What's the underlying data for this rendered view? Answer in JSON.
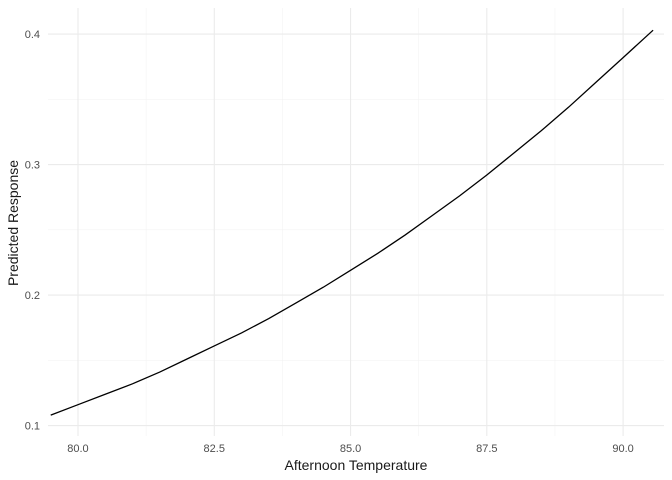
{
  "chart_data": {
    "type": "line",
    "title": "",
    "xlabel": "Afternoon Temperature",
    "ylabel": "Predicted Response",
    "xlim": [
      79.45,
      90.75
    ],
    "ylim": [
      0.092,
      0.42
    ],
    "x_ticks": [
      80.0,
      82.5,
      85.0,
      87.5,
      90.0
    ],
    "x_tick_labels": [
      "80.0",
      "82.5",
      "85.0",
      "87.5",
      "90.0"
    ],
    "y_ticks": [
      0.1,
      0.2,
      0.3,
      0.4
    ],
    "y_tick_labels": [
      "0.1",
      "0.2",
      "0.3",
      "0.4"
    ],
    "x_minor_ticks": [
      81.25,
      83.75,
      86.25,
      88.75
    ],
    "y_minor_ticks": [
      0.15,
      0.25,
      0.35
    ],
    "grid": true,
    "colors": {
      "line": "#000000",
      "grid": "#ebebeb",
      "background": "#ffffff"
    },
    "series": [
      {
        "x": [
          79.5,
          80.0,
          80.5,
          81.0,
          81.5,
          82.0,
          82.5,
          83.0,
          83.5,
          84.0,
          84.5,
          85.0,
          85.5,
          86.0,
          86.5,
          87.0,
          87.5,
          88.0,
          88.5,
          89.0,
          89.5,
          90.0,
          90.55
        ],
        "values": [
          0.108,
          0.116,
          0.124,
          0.132,
          0.141,
          0.151,
          0.161,
          0.171,
          0.182,
          0.194,
          0.206,
          0.219,
          0.232,
          0.246,
          0.261,
          0.276,
          0.292,
          0.309,
          0.326,
          0.344,
          0.363,
          0.382,
          0.403
        ]
      }
    ]
  }
}
